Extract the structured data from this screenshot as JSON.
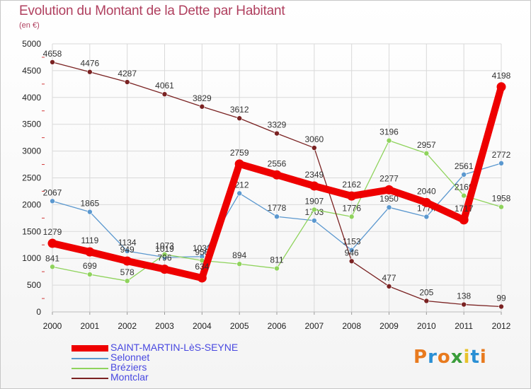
{
  "header": {
    "title": "Evolution du Montant de la Dette par Habitant",
    "subtitle": "(en €)"
  },
  "brand": {
    "logo_text": "Proxiti",
    "letter_colors": [
      "#e87a1e",
      "#2a8fd4",
      "#e87a1e",
      "#3a9d3a",
      "#e8c22a",
      "#2a8fd4",
      "#e87a1e"
    ]
  },
  "colors": {
    "grid": "#d9d9d9",
    "tick_mark": "#d23a3a",
    "axis_text": "#222222",
    "value_text": "#333333"
  },
  "chart_data": {
    "type": "line",
    "title": "Evolution du Montant de la Dette par Habitant",
    "subtitle": "(en €)",
    "xlabel": "",
    "ylabel": "",
    "x": [
      "2000",
      "2001",
      "2002",
      "2003",
      "2004",
      "2005",
      "2006",
      "2007",
      "2008",
      "2009",
      "2010",
      "2011",
      "2012"
    ],
    "ylim": [
      0,
      5000
    ],
    "yticks": [
      0,
      500,
      1000,
      1500,
      2000,
      2500,
      3000,
      3500,
      4000,
      4500,
      5000
    ],
    "grid": true,
    "legend_position": "bottom-left",
    "series": [
      {
        "name": "SAINT-MARTIN-LèS-SEYNE",
        "color": "#ee0000",
        "emphasis": true,
        "values": [
          1279,
          1119,
          949,
          796,
          634,
          2759,
          2556,
          2349,
          2162,
          2277,
          2040,
          1717,
          4198
        ]
      },
      {
        "name": "Selonnet",
        "color": "#5b98cf",
        "emphasis": false,
        "values": [
          2067,
          1865,
          1134,
          1019,
          1032,
          2212,
          1778,
          1703,
          1153,
          1950,
          1774,
          2561,
          2772
        ]
      },
      {
        "name": "Bréziers",
        "color": "#8fd35c",
        "emphasis": false,
        "values": [
          841,
          699,
          578,
          1073,
          958,
          894,
          811,
          1907,
          1776,
          3196,
          2957,
          2169,
          1958
        ]
      },
      {
        "name": "Montclar",
        "color": "#7a2222",
        "emphasis": false,
        "values": [
          4658,
          4476,
          4287,
          4061,
          3829,
          3612,
          3329,
          3060,
          946,
          477,
          205,
          138,
          99
        ]
      }
    ]
  }
}
